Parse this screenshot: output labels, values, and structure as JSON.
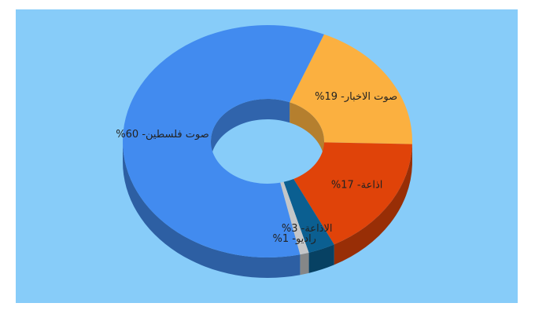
{
  "chart_data": {
    "type": "pie",
    "variant": "donut-3d",
    "title": "",
    "slices": [
      {
        "label": "صوت الاخبار",
        "value": 19,
        "color": "#fbb040",
        "text": "%صوت الاخبار- 19"
      },
      {
        "label": "اذاعة",
        "value": 17,
        "color": "#e04309",
        "text": "%اذاعة- 17"
      },
      {
        "label": "الاذاعة",
        "value": 3,
        "color": "#0b5f91",
        "text": "%الاذاعة- 3"
      },
      {
        "label": "راديو",
        "value": 1,
        "color": "#c4c6c8",
        "text": "%راديو- 1"
      },
      {
        "label": "صوت فلسطين",
        "value": 60,
        "color": "#428bef",
        "text": "%صوت فلسطين- 60"
      }
    ]
  },
  "colors": {
    "background": "#87ccf9"
  }
}
